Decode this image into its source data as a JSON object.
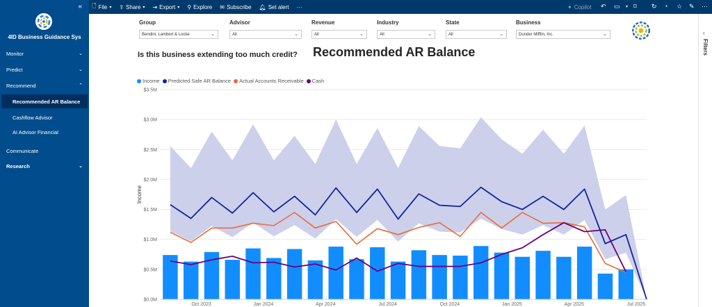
{
  "topbar": {
    "file": "File",
    "share": "Share",
    "export": "Export",
    "explore": "Explore",
    "subscribe": "Subscribe",
    "set_alert": "Set alert",
    "more": "···",
    "copilot": "Copilot"
  },
  "sidebar": {
    "app_title": "4ID Business Guidance Sys",
    "items": [
      {
        "label": "Monitor"
      },
      {
        "label": "Predict"
      },
      {
        "label": "Recommend"
      },
      {
        "label": "Recommended AR Balance"
      },
      {
        "label": "Cashflow Advisor"
      },
      {
        "label": "AI Advisor Financial"
      },
      {
        "label": "Communicate"
      },
      {
        "label": "Research"
      }
    ]
  },
  "filters_pane": {
    "label": "Filters"
  },
  "slicers": [
    {
      "label": "Group",
      "value": "Bendini, Lambert & Locke"
    },
    {
      "label": "Advisor",
      "value": "All"
    },
    {
      "label": "Revenue",
      "value": "All"
    },
    {
      "label": "Industry",
      "value": "All"
    },
    {
      "label": "State",
      "value": "All"
    },
    {
      "label": "Business",
      "value": "Dunder Mifflin, Inc."
    }
  ],
  "main": {
    "question": "Is this business extending too much credit?",
    "title": "Recommended AR Balance"
  },
  "colors": {
    "income": "#118dff",
    "predicted": "#12239e",
    "predicted_band": "#c8cbe9",
    "actual": "#e66c37",
    "cash": "#6b007b",
    "sidebar": "#004c8c",
    "topbar": "#003a6c"
  },
  "chart_data": {
    "type": "bar",
    "x_dates": [
      "2023-08",
      "2023-09",
      "2023-10",
      "2023-11",
      "2023-12",
      "2024-01",
      "2024-02",
      "2024-03",
      "2024-04",
      "2024-05",
      "2024-06",
      "2024-07",
      "2024-08",
      "2024-09",
      "2024-10",
      "2024-11",
      "2024-12",
      "2025-01",
      "2025-02",
      "2025-03",
      "2025-04",
      "2025-05",
      "2025-06",
      "2025-07"
    ],
    "x_tick_labels": [
      "Oct 2023",
      "Jan 2024",
      "Apr 2024",
      "Jul 2024",
      "Oct 2024",
      "Jan 2025",
      "Apr 2025",
      "Jul 2025"
    ],
    "x_tick_positions": [
      2,
      5,
      8,
      11,
      14,
      17,
      20,
      23
    ],
    "ylabel": "Income",
    "ylim": [
      0,
      3500000
    ],
    "y_ticks": [
      "$0.0M",
      "$0.5M",
      "$1.0M",
      "$1.5M",
      "$2.0M",
      "$2.5M",
      "$3.0M",
      "$3.5M"
    ],
    "series": [
      {
        "name": "Income",
        "type": "bar",
        "values": [
          0.74,
          0.63,
          0.79,
          0.66,
          0.85,
          0.69,
          0.84,
          0.65,
          0.88,
          0.67,
          0.87,
          0.63,
          0.82,
          0.74,
          0.73,
          0.89,
          0.78,
          0.71,
          0.81,
          0.71,
          0.88,
          0.43,
          0.5,
          null
        ]
      },
      {
        "name": "Predicted Safe AR Balance",
        "type": "line",
        "values": [
          1.58,
          1.35,
          1.7,
          1.44,
          1.78,
          1.46,
          1.72,
          1.41,
          1.86,
          1.45,
          1.84,
          1.34,
          1.76,
          1.57,
          1.55,
          1.87,
          1.63,
          1.5,
          1.72,
          1.5,
          1.84,
          0.93,
          1.08,
          0.0
        ]
      },
      {
        "name": "Actual Accounts Receivable",
        "type": "line",
        "values": [
          1.12,
          0.95,
          1.19,
          1.19,
          1.27,
          1.23,
          1.45,
          1.19,
          1.3,
          0.92,
          1.18,
          1.08,
          1.2,
          1.28,
          1.05,
          1.45,
          1.19,
          1.45,
          1.27,
          1.28,
          1.21,
          0.6,
          0.45,
          null
        ]
      },
      {
        "name": "Cash",
        "type": "line",
        "values": [
          0.64,
          0.58,
          0.66,
          0.72,
          0.61,
          0.62,
          0.54,
          0.59,
          0.49,
          0.69,
          0.47,
          0.6,
          0.55,
          0.55,
          0.55,
          0.61,
          0.75,
          0.86,
          1.08,
          1.28,
          1.13,
          1.16,
          0.46,
          null
        ]
      },
      {
        "name": "Predicted Safe AR Band Upper",
        "type": "area",
        "values": [
          2.56,
          2.19,
          2.8,
          2.32,
          2.92,
          2.32,
          2.73,
          2.26,
          3.0,
          2.26,
          2.86,
          2.19,
          2.89,
          2.56,
          2.52,
          3.04,
          2.67,
          2.43,
          2.83,
          2.43,
          2.9,
          1.5,
          1.74,
          0.0
        ]
      }
    ]
  }
}
